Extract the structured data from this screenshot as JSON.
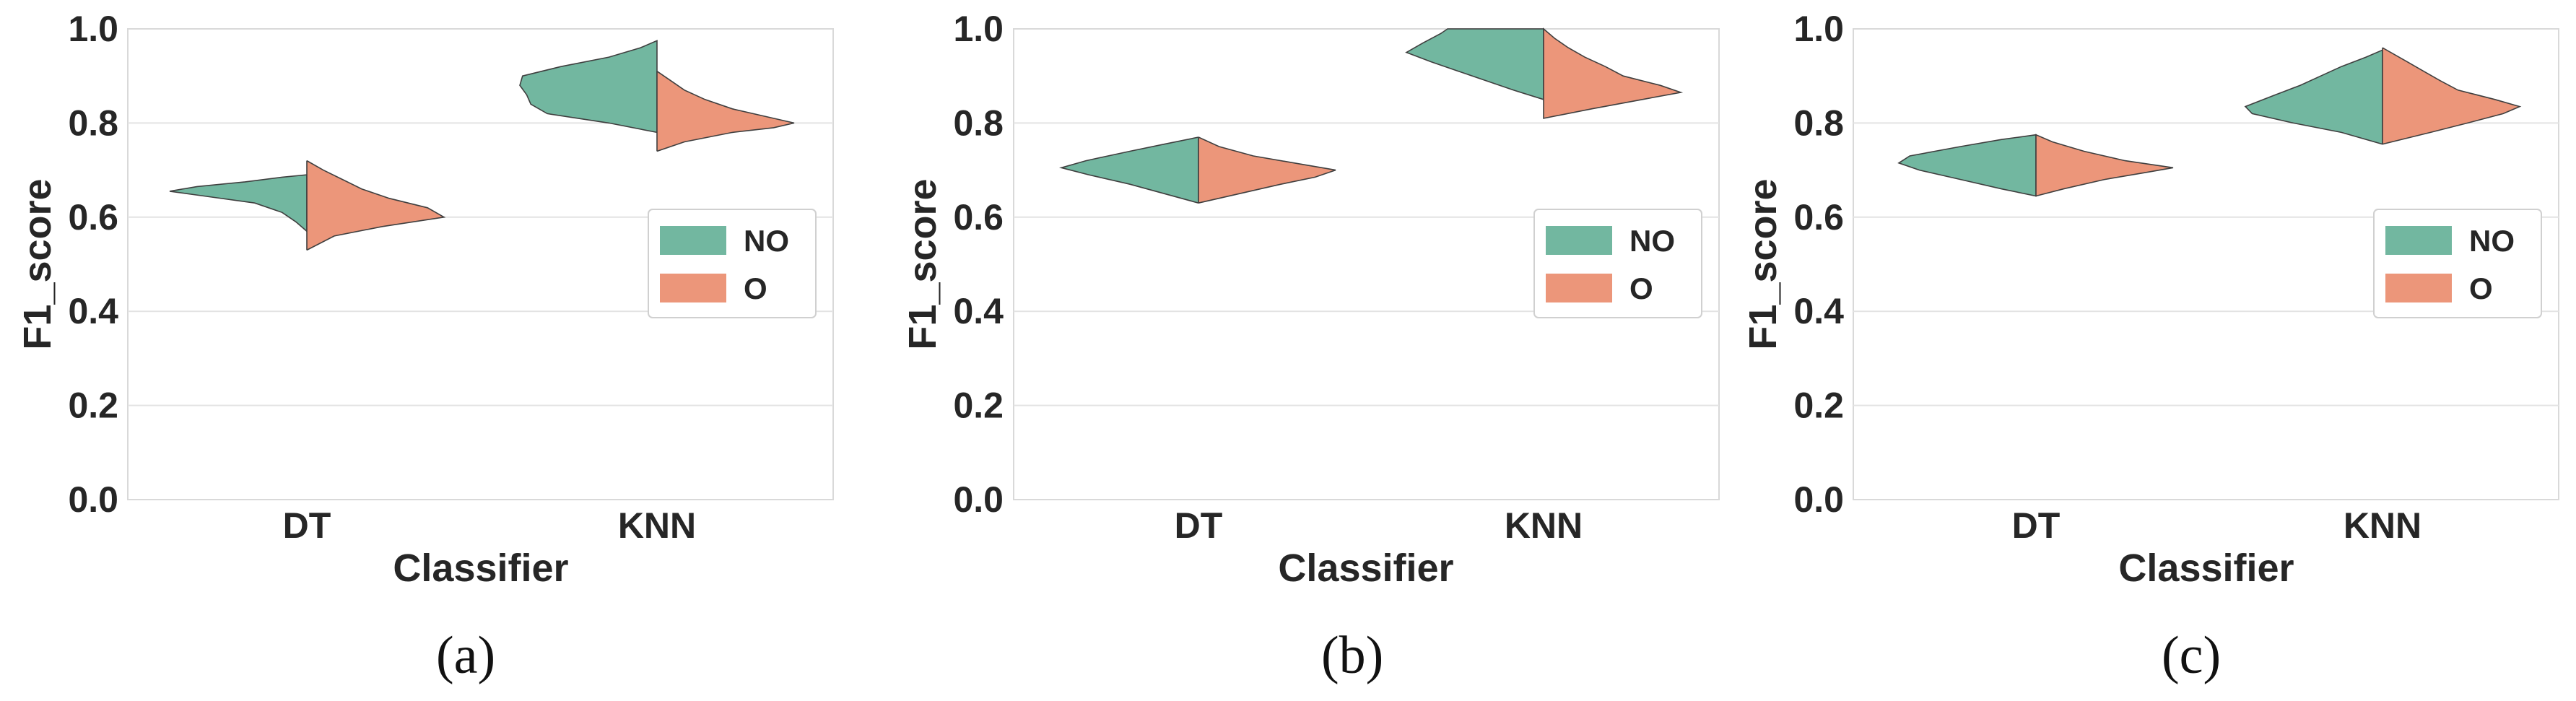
{
  "colors": {
    "NO": "#72b7a0",
    "O": "#ec967a"
  },
  "legend": {
    "labels": [
      "NO",
      "O"
    ],
    "placement": "center-right"
  },
  "chart_data": [
    {
      "caption": "(a)",
      "type": "violin",
      "xlabel": "Classifier",
      "ylabel": "F1_score",
      "ylim": [
        0.0,
        1.0
      ],
      "yticks": [
        "0.0",
        "0.2",
        "0.4",
        "0.6",
        "0.8",
        "1.0"
      ],
      "categories": [
        "DT",
        "KNN"
      ],
      "grid": true,
      "series": [
        {
          "name": "NO",
          "violins": [
            {
              "category": "DT",
              "min": 0.57,
              "max": 0.69,
              "profile": [
                [
                  0.57,
                  0.0
                ],
                [
                  0.59,
                  0.08
                ],
                [
                  0.61,
                  0.18
                ],
                [
                  0.63,
                  0.38
                ],
                [
                  0.645,
                  0.75
                ],
                [
                  0.655,
                  1.0
                ],
                [
                  0.665,
                  0.8
                ],
                [
                  0.675,
                  0.45
                ],
                [
                  0.685,
                  0.18
                ],
                [
                  0.69,
                  0.0
                ]
              ]
            },
            {
              "category": "KNN",
              "min": 0.78,
              "max": 0.975,
              "profile": [
                [
                  0.78,
                  0.0
                ],
                [
                  0.8,
                  0.35
                ],
                [
                  0.82,
                  0.8
                ],
                [
                  0.84,
                  0.92
                ],
                [
                  0.86,
                  0.95
                ],
                [
                  0.88,
                  1.0
                ],
                [
                  0.9,
                  0.98
                ],
                [
                  0.92,
                  0.7
                ],
                [
                  0.94,
                  0.35
                ],
                [
                  0.96,
                  0.12
                ],
                [
                  0.975,
                  0.0
                ]
              ]
            }
          ]
        },
        {
          "name": "O",
          "violins": [
            {
              "category": "DT",
              "min": 0.53,
              "max": 0.72,
              "profile": [
                [
                  0.53,
                  0.0
                ],
                [
                  0.56,
                  0.2
                ],
                [
                  0.58,
                  0.55
                ],
                [
                  0.6,
                  1.0
                ],
                [
                  0.62,
                  0.88
                ],
                [
                  0.64,
                  0.6
                ],
                [
                  0.66,
                  0.4
                ],
                [
                  0.68,
                  0.26
                ],
                [
                  0.7,
                  0.12
                ],
                [
                  0.72,
                  0.0
                ]
              ]
            },
            {
              "category": "KNN",
              "min": 0.74,
              "max": 0.91,
              "profile": [
                [
                  0.74,
                  0.0
                ],
                [
                  0.76,
                  0.2
                ],
                [
                  0.78,
                  0.55
                ],
                [
                  0.79,
                  0.85
                ],
                [
                  0.8,
                  1.0
                ],
                [
                  0.81,
                  0.85
                ],
                [
                  0.83,
                  0.55
                ],
                [
                  0.85,
                  0.35
                ],
                [
                  0.87,
                  0.2
                ],
                [
                  0.89,
                  0.1
                ],
                [
                  0.91,
                  0.0
                ]
              ]
            }
          ]
        }
      ]
    },
    {
      "caption": "(b)",
      "type": "violin",
      "xlabel": "Classifier",
      "ylabel": "F1_score",
      "ylim": [
        0.0,
        1.0
      ],
      "yticks": [
        "0.0",
        "0.2",
        "0.4",
        "0.6",
        "0.8",
        "1.0"
      ],
      "categories": [
        "DT",
        "KNN"
      ],
      "grid": true,
      "series": [
        {
          "name": "NO",
          "violins": [
            {
              "category": "DT",
              "min": 0.63,
              "max": 0.77,
              "profile": [
                [
                  0.63,
                  0.0
                ],
                [
                  0.65,
                  0.25
                ],
                [
                  0.67,
                  0.5
                ],
                [
                  0.69,
                  0.8
                ],
                [
                  0.705,
                  1.0
                ],
                [
                  0.72,
                  0.82
                ],
                [
                  0.74,
                  0.5
                ],
                [
                  0.755,
                  0.25
                ],
                [
                  0.77,
                  0.0
                ]
              ]
            },
            {
              "category": "KNN",
              "min": 0.85,
              "max": 1.0,
              "profile": [
                [
                  0.85,
                  0.0
                ],
                [
                  0.87,
                  0.22
                ],
                [
                  0.89,
                  0.42
                ],
                [
                  0.91,
                  0.62
                ],
                [
                  0.93,
                  0.82
                ],
                [
                  0.95,
                  1.0
                ],
                [
                  0.97,
                  0.88
                ],
                [
                  0.99,
                  0.75
                ],
                [
                  1.0,
                  0.7
                ]
              ]
            }
          ]
        },
        {
          "name": "O",
          "violins": [
            {
              "category": "DT",
              "min": 0.63,
              "max": 0.77,
              "profile": [
                [
                  0.63,
                  0.0
                ],
                [
                  0.65,
                  0.3
                ],
                [
                  0.67,
                  0.6
                ],
                [
                  0.685,
                  0.85
                ],
                [
                  0.7,
                  1.0
                ],
                [
                  0.715,
                  0.7
                ],
                [
                  0.73,
                  0.4
                ],
                [
                  0.75,
                  0.15
                ],
                [
                  0.77,
                  0.0
                ]
              ]
            },
            {
              "category": "KNN",
              "min": 0.81,
              "max": 1.0,
              "profile": [
                [
                  0.81,
                  0.0
                ],
                [
                  0.83,
                  0.35
                ],
                [
                  0.85,
                  0.72
                ],
                [
                  0.865,
                  1.0
                ],
                [
                  0.88,
                  0.85
                ],
                [
                  0.9,
                  0.58
                ],
                [
                  0.92,
                  0.45
                ],
                [
                  0.94,
                  0.3
                ],
                [
                  0.96,
                  0.18
                ],
                [
                  0.98,
                  0.08
                ],
                [
                  1.0,
                  0.0
                ]
              ]
            }
          ]
        }
      ]
    },
    {
      "caption": "(c)",
      "type": "violin",
      "xlabel": "Classifier",
      "ylabel": "F1_score",
      "ylim": [
        0.0,
        1.0
      ],
      "yticks": [
        "0.0",
        "0.2",
        "0.4",
        "0.6",
        "0.8",
        "1.0"
      ],
      "categories": [
        "DT",
        "KNN"
      ],
      "grid": true,
      "series": [
        {
          "name": "NO",
          "violins": [
            {
              "category": "DT",
              "min": 0.645,
              "max": 0.775,
              "profile": [
                [
                  0.645,
                  0.0
                ],
                [
                  0.66,
                  0.25
                ],
                [
                  0.68,
                  0.55
                ],
                [
                  0.7,
                  0.85
                ],
                [
                  0.715,
                  1.0
                ],
                [
                  0.73,
                  0.92
                ],
                [
                  0.75,
                  0.55
                ],
                [
                  0.765,
                  0.25
                ],
                [
                  0.775,
                  0.0
                ]
              ]
            },
            {
              "category": "KNN",
              "min": 0.755,
              "max": 0.955,
              "profile": [
                [
                  0.755,
                  0.0
                ],
                [
                  0.78,
                  0.3
                ],
                [
                  0.8,
                  0.65
                ],
                [
                  0.82,
                  0.95
                ],
                [
                  0.835,
                  1.0
                ],
                [
                  0.86,
                  0.78
                ],
                [
                  0.88,
                  0.6
                ],
                [
                  0.9,
                  0.45
                ],
                [
                  0.92,
                  0.3
                ],
                [
                  0.94,
                  0.12
                ],
                [
                  0.955,
                  0.0
                ]
              ]
            }
          ]
        },
        {
          "name": "O",
          "violins": [
            {
              "category": "DT",
              "min": 0.645,
              "max": 0.775,
              "profile": [
                [
                  0.645,
                  0.0
                ],
                [
                  0.66,
                  0.2
                ],
                [
                  0.68,
                  0.5
                ],
                [
                  0.695,
                  0.8
                ],
                [
                  0.705,
                  1.0
                ],
                [
                  0.72,
                  0.65
                ],
                [
                  0.74,
                  0.35
                ],
                [
                  0.76,
                  0.12
                ],
                [
                  0.775,
                  0.0
                ]
              ]
            },
            {
              "category": "KNN",
              "min": 0.755,
              "max": 0.96,
              "profile": [
                [
                  0.755,
                  0.0
                ],
                [
                  0.78,
                  0.35
                ],
                [
                  0.8,
                  0.62
                ],
                [
                  0.82,
                  0.88
                ],
                [
                  0.835,
                  1.0
                ],
                [
                  0.85,
                  0.82
                ],
                [
                  0.87,
                  0.55
                ],
                [
                  0.89,
                  0.42
                ],
                [
                  0.91,
                  0.3
                ],
                [
                  0.93,
                  0.18
                ],
                [
                  0.96,
                  0.0
                ]
              ]
            }
          ]
        }
      ]
    }
  ]
}
